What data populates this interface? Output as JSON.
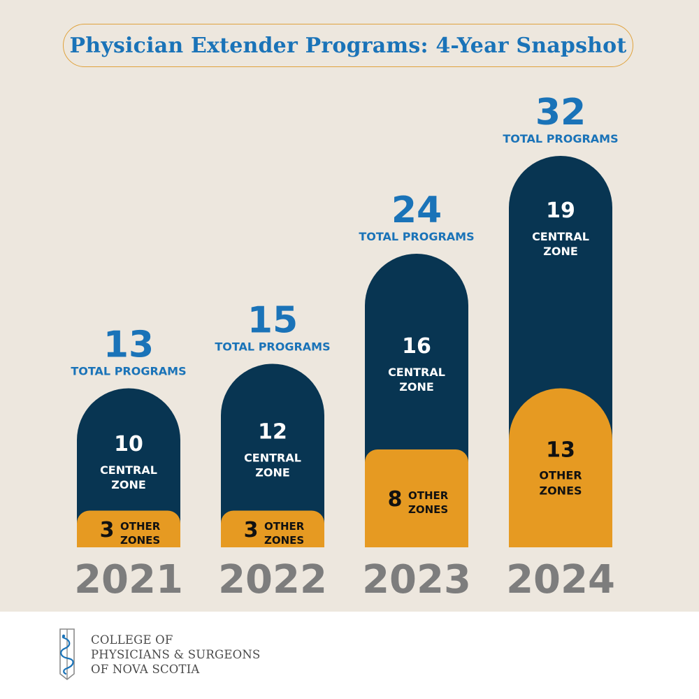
{
  "title": "Physician Extender Programs: 4-Year Snapshot",
  "colors": {
    "background": "#ede7de",
    "central": "#083552",
    "other": "#e69a22",
    "total_blue": "#1a73b8",
    "year_gray": "#7d7d7d"
  },
  "chart_data": {
    "type": "bar",
    "stacked": true,
    "title": "Physician Extender Programs: 4-Year Snapshot",
    "categories": [
      "2021",
      "2022",
      "2023",
      "2024"
    ],
    "series": [
      {
        "name": "Central Zone",
        "values": [
          10,
          12,
          16,
          19
        ]
      },
      {
        "name": "Other Zones",
        "values": [
          3,
          3,
          8,
          13
        ]
      }
    ],
    "totals": [
      13,
      15,
      24,
      32
    ],
    "total_label": "TOTAL PROGRAMS",
    "central_label": [
      "CENTRAL",
      "ZONE"
    ],
    "other_label": [
      "OTHER",
      "ZONES"
    ],
    "xlabel": "",
    "ylabel": ""
  },
  "footer": {
    "org_lines": [
      "COLLEGE OF",
      "PHYSICIANS & SURGEONS",
      "OF NOVA SCOTIA"
    ]
  }
}
